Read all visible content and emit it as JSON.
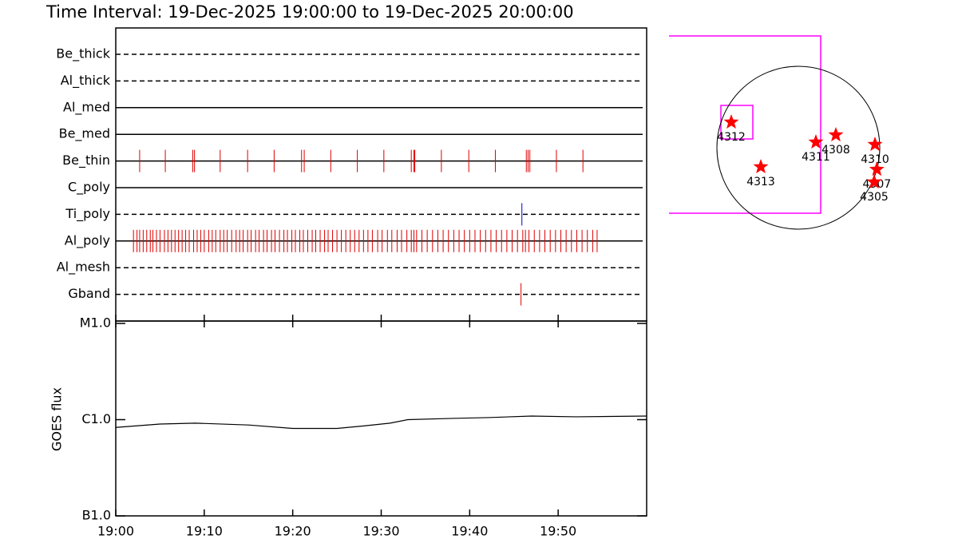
{
  "chart_data": {
    "type": "timeline",
    "title": "Time Interval: 19-Dec-2025 19:00:00 to 19-Dec-2025 20:00:00",
    "xlim": [
      0,
      60
    ],
    "xticks": [
      {
        "value": 0,
        "label": "19:00"
      },
      {
        "value": 10,
        "label": "19:10"
      },
      {
        "value": 20,
        "label": "19:20"
      },
      {
        "value": 30,
        "label": "19:30"
      },
      {
        "value": 40,
        "label": "19:40"
      },
      {
        "value": 50,
        "label": "19:50"
      }
    ],
    "filters": [
      {
        "name": "Be_thick",
        "line": "dashed",
        "color": "#e00000",
        "events": []
      },
      {
        "name": "Al_thick",
        "line": "dashed",
        "color": "#e00000",
        "events": []
      },
      {
        "name": "Al_med",
        "line": "solid",
        "color": "#e00000",
        "events": []
      },
      {
        "name": "Be_med",
        "line": "solid",
        "color": "#e00000",
        "events": []
      },
      {
        "name": "Be_thin",
        "line": "solid",
        "color": "#e00000",
        "events": [
          2.7,
          5.6,
          8.7,
          8.9,
          11.8,
          14.9,
          17.9,
          21.0,
          21.3,
          24.3,
          27.3,
          30.3,
          33.4,
          33.7,
          33.8,
          36.8,
          39.9,
          42.9,
          46.4,
          46.6,
          46.8,
          49.8,
          52.8
        ]
      },
      {
        "name": "C_poly",
        "line": "solid",
        "color": "#e00000",
        "events": []
      },
      {
        "name": "Ti_poly",
        "line": "dashed",
        "color": "#0000d0",
        "events": [
          45.9
        ]
      },
      {
        "name": "Al_poly",
        "line": "solid",
        "color": "#e00000",
        "events": [
          2.0,
          2.4,
          2.7,
          3.1,
          3.5,
          3.9,
          4.2,
          4.6,
          5.0,
          5.5,
          5.9,
          6.3,
          6.7,
          7.1,
          7.5,
          7.9,
          8.3,
          8.8,
          9.2,
          9.6,
          10.0,
          10.5,
          10.9,
          11.3,
          11.8,
          12.2,
          12.6,
          13.1,
          13.6,
          14.0,
          14.4,
          14.9,
          15.3,
          15.8,
          16.2,
          16.7,
          17.1,
          17.6,
          18.0,
          18.5,
          19.0,
          19.4,
          19.9,
          20.3,
          20.8,
          21.2,
          21.7,
          22.2,
          22.6,
          23.1,
          23.6,
          24.0,
          24.5,
          25.0,
          25.5,
          26.0,
          26.5,
          27.0,
          27.5,
          28.0,
          28.5,
          29.0,
          29.6,
          30.1,
          30.7,
          31.2,
          31.8,
          32.3,
          32.9,
          33.4,
          33.7,
          34.0,
          34.6,
          35.2,
          35.8,
          36.4,
          37.0,
          37.6,
          38.2,
          38.8,
          39.4,
          40.0,
          40.6,
          41.2,
          41.8,
          42.4,
          43.0,
          43.6,
          44.2,
          44.8,
          45.4,
          46.0,
          46.3,
          46.7,
          47.3,
          47.9,
          48.5,
          49.1,
          49.7,
          50.3,
          50.9,
          51.5,
          52.1,
          52.7,
          53.3,
          53.9,
          54.4
        ]
      },
      {
        "name": "Al_mesh",
        "line": "dashed",
        "color": "#e00000",
        "events": []
      },
      {
        "name": "Gband",
        "line": "dashed",
        "color": "#e00000",
        "events": [
          45.8
        ]
      }
    ],
    "goes": {
      "ylabel": "GOES flux",
      "log": true,
      "ylim": [
        1e-07,
        1e-05
      ],
      "yticks": [
        {
          "value": 1e-07,
          "label": "B1.0"
        },
        {
          "value": 1e-06,
          "label": "C1.0"
        },
        {
          "value": 1e-05,
          "label": "M1.0"
        }
      ],
      "x": [
        0,
        5,
        9,
        15,
        20,
        25,
        28,
        31,
        33,
        38,
        42,
        47,
        52,
        60
      ],
      "values": [
        8.3e-07,
        9e-07,
        9.2e-07,
        8.8e-07,
        8.1e-07,
        8.1e-07,
        8.6e-07,
        9.2e-07,
        1e-06,
        1.03e-06,
        1.05e-06,
        1.09e-06,
        1.07e-06,
        1.09e-06
      ]
    },
    "sun_map": {
      "radius": 975,
      "marker_color": "#ff0000",
      "regions": [
        {
          "label": "4312",
          "x": -803,
          "y": 306
        },
        {
          "label": "4313",
          "x": -449,
          "y": -229
        },
        {
          "label": "4311",
          "x": 210,
          "y": 67
        },
        {
          "label": "4308",
          "x": 449,
          "y": 153
        },
        {
          "label": "4310",
          "x": 918,
          "y": 38
        },
        {
          "label": "4307",
          "x": 940,
          "y": -260
        },
        {
          "label": "4305",
          "x": 908,
          "y": -411
        }
      ]
    }
  }
}
